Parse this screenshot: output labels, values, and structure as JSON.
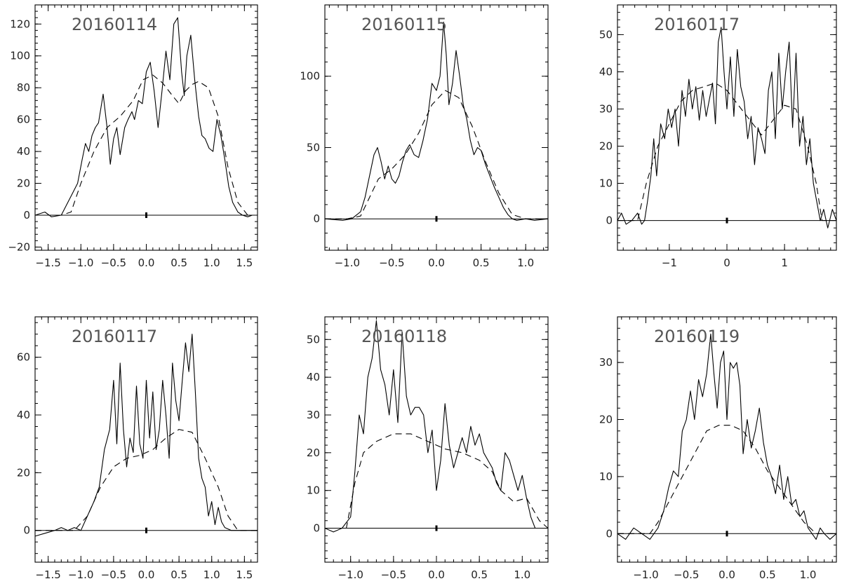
{
  "chart_data": [
    {
      "type": "line",
      "title": "20160114",
      "xlim": [
        -1.7,
        1.7
      ],
      "ylim": [
        -22,
        132
      ],
      "xticks": [
        -1.5,
        -1.0,
        -0.5,
        0.0,
        0.5,
        1.0,
        1.5
      ],
      "xtick_labels": [
        "−1.5",
        "−1.0",
        "−0.5",
        "0.0",
        "0.5",
        "1.0",
        "1.5"
      ],
      "yticks": [
        -20,
        0,
        20,
        40,
        60,
        80,
        100,
        120
      ],
      "ytick_labels": [
        "−20",
        "0",
        "20",
        "40",
        "60",
        "80",
        "100",
        "120"
      ],
      "series": [
        {
          "style": "solid",
          "x": [
            -1.7,
            -1.55,
            -1.45,
            -1.3,
            -1.15,
            -1.05,
            -0.98,
            -0.93,
            -0.88,
            -0.83,
            -0.78,
            -0.73,
            -0.66,
            -0.6,
            -0.55,
            -0.5,
            -0.45,
            -0.4,
            -0.33,
            -0.28,
            -0.22,
            -0.18,
            -0.12,
            -0.06,
            0.0,
            0.06,
            0.12,
            0.18,
            0.24,
            0.3,
            0.36,
            0.42,
            0.48,
            0.54,
            0.58,
            0.62,
            0.68,
            0.74,
            0.8,
            0.85,
            0.9,
            0.96,
            1.02,
            1.08,
            1.14,
            1.2,
            1.26,
            1.32,
            1.4,
            1.47,
            1.55,
            1.62,
            1.7
          ],
          "y": [
            0,
            2,
            -1,
            0,
            12,
            20,
            35,
            45,
            40,
            50,
            55,
            58,
            76,
            55,
            32,
            48,
            55,
            38,
            55,
            60,
            65,
            60,
            72,
            70,
            90,
            96,
            78,
            55,
            78,
            103,
            85,
            120,
            124,
            90,
            75,
            100,
            113,
            85,
            62,
            50,
            48,
            42,
            40,
            60,
            50,
            35,
            18,
            8,
            2,
            0,
            -1,
            0,
            0
          ]
        },
        {
          "style": "dashed",
          "x": [
            -1.7,
            -1.3,
            -1.15,
            -1.0,
            -0.8,
            -0.6,
            -0.4,
            -0.2,
            -0.05,
            0.1,
            0.25,
            0.4,
            0.5,
            0.6,
            0.7,
            0.8,
            0.95,
            1.1,
            1.25,
            1.4,
            1.55,
            1.7
          ],
          "y": [
            0,
            0,
            2,
            20,
            40,
            55,
            62,
            72,
            85,
            88,
            83,
            75,
            70,
            78,
            82,
            84,
            80,
            62,
            30,
            8,
            0,
            0
          ]
        }
      ]
    },
    {
      "type": "line",
      "title": "20160115",
      "xlim": [
        -1.25,
        1.25
      ],
      "ylim": [
        -22,
        150
      ],
      "xticks": [
        -1.0,
        -0.5,
        0.0,
        0.5,
        1.0
      ],
      "xtick_labels": [
        "−1.0",
        "−0.5",
        "0.0",
        "0.5",
        "1.0"
      ],
      "yticks": [
        0,
        50,
        100
      ],
      "ytick_labels": [
        "0",
        "50",
        "100"
      ],
      "series": [
        {
          "style": "solid",
          "x": [
            -1.25,
            -1.05,
            -0.95,
            -0.85,
            -0.8,
            -0.75,
            -0.7,
            -0.66,
            -0.62,
            -0.58,
            -0.54,
            -0.5,
            -0.46,
            -0.42,
            -0.38,
            -0.34,
            -0.3,
            -0.25,
            -0.2,
            -0.15,
            -0.1,
            -0.05,
            0.0,
            0.04,
            0.08,
            0.11,
            0.14,
            0.18,
            0.22,
            0.26,
            0.3,
            0.34,
            0.38,
            0.42,
            0.46,
            0.5,
            0.55,
            0.6,
            0.65,
            0.7,
            0.75,
            0.8,
            0.85,
            0.9,
            1.0,
            1.1,
            1.25
          ],
          "y": [
            0,
            -1,
            0,
            5,
            15,
            30,
            45,
            50,
            40,
            28,
            37,
            28,
            25,
            30,
            40,
            48,
            52,
            45,
            43,
            55,
            70,
            95,
            90,
            100,
            138,
            115,
            80,
            95,
            118,
            100,
            80,
            70,
            55,
            45,
            50,
            48,
            38,
            30,
            22,
            15,
            8,
            3,
            0,
            -1,
            0,
            -1,
            0
          ]
        },
        {
          "style": "dashed",
          "x": [
            -1.25,
            -1.0,
            -0.85,
            -0.75,
            -0.65,
            -0.5,
            -0.35,
            -0.2,
            -0.05,
            0.1,
            0.25,
            0.4,
            0.55,
            0.7,
            0.85,
            1.0,
            1.25
          ],
          "y": [
            0,
            0,
            2,
            15,
            28,
            35,
            45,
            60,
            80,
            90,
            85,
            65,
            40,
            18,
            3,
            0,
            0
          ]
        }
      ]
    },
    {
      "type": "line",
      "title": "20160117",
      "xlim": [
        -1.9,
        1.9
      ],
      "ylim": [
        -8,
        58
      ],
      "xticks": [
        -1,
        0,
        1
      ],
      "xtick_labels": [
        "−1",
        "0",
        "1"
      ],
      "yticks": [
        0,
        10,
        20,
        30,
        40,
        50
      ],
      "ytick_labels": [
        "0",
        "10",
        "20",
        "30",
        "40",
        "50"
      ],
      "series": [
        {
          "style": "solid",
          "x": [
            -1.9,
            -1.83,
            -1.75,
            -1.65,
            -1.55,
            -1.48,
            -1.43,
            -1.38,
            -1.32,
            -1.27,
            -1.22,
            -1.15,
            -1.08,
            -1.02,
            -0.96,
            -0.9,
            -0.84,
            -0.78,
            -0.72,
            -0.66,
            -0.6,
            -0.54,
            -0.48,
            -0.42,
            -0.36,
            -0.3,
            -0.25,
            -0.2,
            -0.15,
            -0.1,
            -0.05,
            0.0,
            0.06,
            0.12,
            0.18,
            0.24,
            0.3,
            0.36,
            0.42,
            0.48,
            0.54,
            0.6,
            0.66,
            0.72,
            0.78,
            0.84,
            0.9,
            0.96,
            1.02,
            1.08,
            1.14,
            1.2,
            1.26,
            1.32,
            1.38,
            1.44,
            1.5,
            1.56,
            1.62,
            1.68,
            1.75,
            1.83,
            1.9
          ],
          "y": [
            0,
            2,
            -1,
            0,
            2,
            -1,
            0,
            5,
            12,
            22,
            12,
            26,
            22,
            30,
            25,
            30,
            20,
            35,
            28,
            38,
            30,
            36,
            27,
            35,
            28,
            33,
            37,
            26,
            48,
            52,
            40,
            30,
            44,
            28,
            46,
            36,
            32,
            22,
            28,
            15,
            25,
            22,
            18,
            35,
            40,
            22,
            45,
            30,
            40,
            48,
            25,
            45,
            20,
            28,
            15,
            22,
            10,
            5,
            0,
            3,
            -2,
            3,
            0
          ]
        },
        {
          "style": "dashed",
          "x": [
            -1.9,
            -1.55,
            -1.4,
            -1.2,
            -1.0,
            -0.8,
            -0.6,
            -0.4,
            -0.2,
            0.0,
            0.2,
            0.4,
            0.6,
            0.8,
            1.0,
            1.2,
            1.4,
            1.55,
            1.65,
            1.9
          ],
          "y": [
            0,
            0,
            10,
            20,
            26,
            32,
            35,
            36,
            37,
            35,
            31,
            27,
            23,
            27,
            31,
            30,
            20,
            10,
            0,
            0
          ]
        }
      ]
    },
    {
      "type": "line",
      "title": "20160117",
      "xlim": [
        -1.7,
        1.7
      ],
      "ylim": [
        -11,
        74
      ],
      "xticks": [
        -1.5,
        -1.0,
        -0.5,
        0.0,
        0.5,
        1.0,
        1.5
      ],
      "xtick_labels": [
        "−1.5",
        "−1.0",
        "−0.5",
        "0.0",
        "0.5",
        "1.0",
        "1.5"
      ],
      "yticks": [
        0,
        20,
        40,
        60
      ],
      "ytick_labels": [
        "0",
        "20",
        "40",
        "60"
      ],
      "series": [
        {
          "style": "solid",
          "x": [
            -1.7,
            -1.55,
            -1.4,
            -1.3,
            -1.2,
            -1.1,
            -1.0,
            -0.9,
            -0.8,
            -0.72,
            -0.64,
            -0.56,
            -0.5,
            -0.45,
            -0.4,
            -0.35,
            -0.3,
            -0.25,
            -0.2,
            -0.15,
            -0.1,
            -0.05,
            0.0,
            0.05,
            0.1,
            0.15,
            0.2,
            0.25,
            0.3,
            0.35,
            0.4,
            0.45,
            0.5,
            0.55,
            0.6,
            0.65,
            0.7,
            0.75,
            0.8,
            0.85,
            0.9,
            0.95,
            1.0,
            1.05,
            1.1,
            1.15,
            1.2,
            1.3,
            1.4,
            1.5,
            1.6,
            1.7
          ],
          "y": [
            -2,
            -1,
            0,
            1,
            0,
            1,
            0,
            5,
            10,
            15,
            28,
            35,
            52,
            30,
            58,
            35,
            22,
            32,
            27,
            50,
            30,
            25,
            52,
            32,
            48,
            28,
            35,
            52,
            40,
            25,
            58,
            45,
            38,
            52,
            65,
            55,
            68,
            48,
            25,
            18,
            15,
            5,
            10,
            2,
            8,
            3,
            1,
            0,
            0,
            0,
            0,
            0
          ]
        },
        {
          "style": "dashed",
          "x": [
            -1.7,
            -1.1,
            -0.9,
            -0.7,
            -0.5,
            -0.3,
            -0.1,
            0.1,
            0.3,
            0.5,
            0.7,
            0.9,
            1.1,
            1.25,
            1.4,
            1.7
          ],
          "y": [
            0,
            0,
            5,
            15,
            22,
            25,
            26,
            28,
            32,
            35,
            34,
            25,
            15,
            5,
            0,
            0
          ]
        }
      ]
    },
    {
      "type": "line",
      "title": "20160118",
      "xlim": [
        -1.3,
        1.3
      ],
      "ylim": [
        -9,
        56
      ],
      "xticks": [
        -1.0,
        -0.5,
        0.0,
        0.5,
        1.0
      ],
      "xtick_labels": [
        "−1.0",
        "−0.5",
        "0.0",
        "0.5",
        "1.0"
      ],
      "yticks": [
        0,
        10,
        20,
        30,
        40,
        50
      ],
      "ytick_labels": [
        "0",
        "10",
        "20",
        "30",
        "40",
        "50"
      ],
      "series": [
        {
          "style": "solid",
          "x": [
            -1.3,
            -1.2,
            -1.1,
            -1.0,
            -0.95,
            -0.9,
            -0.85,
            -0.8,
            -0.75,
            -0.7,
            -0.65,
            -0.6,
            -0.55,
            -0.5,
            -0.45,
            -0.4,
            -0.35,
            -0.3,
            -0.25,
            -0.2,
            -0.15,
            -0.1,
            -0.05,
            0.0,
            0.05,
            0.1,
            0.15,
            0.2,
            0.25,
            0.3,
            0.35,
            0.4,
            0.45,
            0.5,
            0.55,
            0.6,
            0.65,
            0.7,
            0.75,
            0.8,
            0.85,
            0.9,
            0.95,
            1.0,
            1.05,
            1.1,
            1.15,
            1.2,
            1.3
          ],
          "y": [
            0,
            -1,
            0,
            3,
            15,
            30,
            25,
            40,
            45,
            55,
            42,
            38,
            30,
            42,
            28,
            52,
            35,
            30,
            32,
            32,
            30,
            20,
            26,
            10,
            18,
            33,
            22,
            16,
            20,
            24,
            20,
            27,
            22,
            25,
            20,
            18,
            16,
            12,
            10,
            20,
            18,
            14,
            10,
            14,
            8,
            3,
            0,
            0,
            0
          ]
        },
        {
          "style": "dashed",
          "x": [
            -1.3,
            -1.05,
            -0.95,
            -0.85,
            -0.7,
            -0.5,
            -0.3,
            -0.1,
            0.1,
            0.3,
            0.5,
            0.65,
            0.75,
            0.9,
            1.05,
            1.2,
            1.3
          ],
          "y": [
            0,
            0,
            12,
            20,
            23,
            25,
            25,
            23,
            21,
            20,
            18,
            15,
            10,
            7,
            8,
            2,
            0
          ]
        }
      ]
    },
    {
      "type": "line",
      "title": "20160119",
      "xlim": [
        -1.35,
        1.35
      ],
      "ylim": [
        -5,
        38
      ],
      "xticks": [
        -1.0,
        -0.5,
        0.0,
        0.5,
        1.0
      ],
      "xtick_labels": [
        "−1.0",
        "−0.5",
        "0.0",
        "0.5",
        "1.0"
      ],
      "yticks": [
        0,
        10,
        20,
        30
      ],
      "ytick_labels": [
        "0",
        "10",
        "20",
        "30"
      ],
      "series": [
        {
          "style": "solid",
          "x": [
            -1.35,
            -1.25,
            -1.15,
            -1.05,
            -0.95,
            -0.85,
            -0.78,
            -0.72,
            -0.66,
            -0.6,
            -0.55,
            -0.5,
            -0.45,
            -0.4,
            -0.35,
            -0.3,
            -0.25,
            -0.2,
            -0.16,
            -0.12,
            -0.08,
            -0.04,
            0.0,
            0.04,
            0.08,
            0.12,
            0.16,
            0.2,
            0.25,
            0.3,
            0.35,
            0.4,
            0.45,
            0.5,
            0.55,
            0.6,
            0.65,
            0.7,
            0.75,
            0.8,
            0.85,
            0.9,
            0.95,
            1.0,
            1.05,
            1.1,
            1.15,
            1.2,
            1.27,
            1.35
          ],
          "y": [
            0,
            -1,
            1,
            0,
            -1,
            1,
            4,
            8,
            11,
            10,
            18,
            20,
            25,
            20,
            27,
            24,
            28,
            35,
            28,
            22,
            30,
            32,
            20,
            30,
            29,
            30,
            26,
            14,
            20,
            15,
            18,
            22,
            16,
            12,
            10,
            7,
            12,
            6,
            10,
            5,
            6,
            3,
            4,
            1,
            0,
            -1,
            1,
            0,
            -1,
            0
          ]
        },
        {
          "style": "dashed",
          "x": [
            -1.35,
            -0.95,
            -0.85,
            -0.7,
            -0.55,
            -0.4,
            -0.25,
            -0.1,
            0.05,
            0.2,
            0.35,
            0.5,
            0.65,
            0.8,
            0.95,
            1.1,
            1.35
          ],
          "y": [
            0,
            0,
            2,
            6,
            10,
            14,
            18,
            19,
            19,
            18,
            15,
            11,
            8,
            5,
            2,
            0,
            0
          ]
        }
      ]
    }
  ]
}
